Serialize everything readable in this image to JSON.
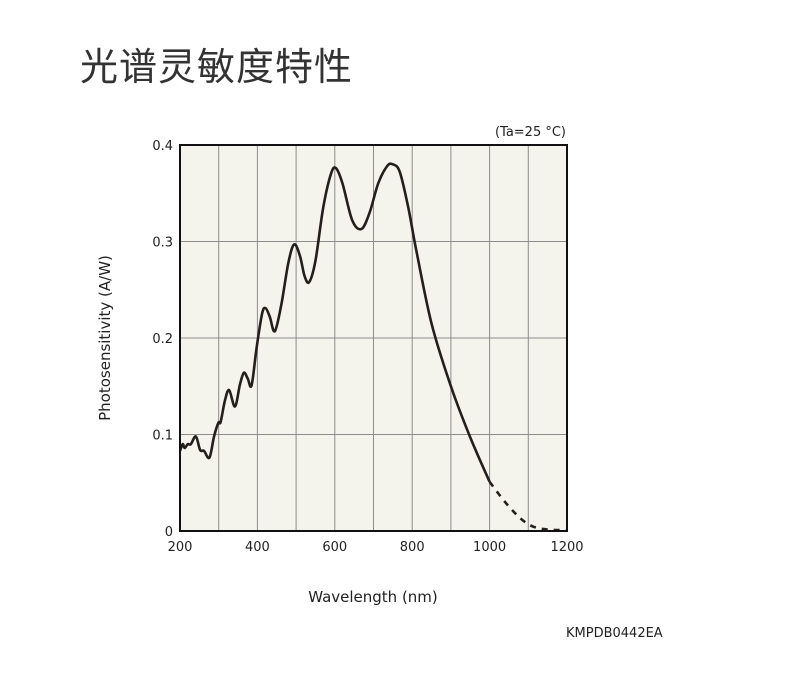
{
  "page_title": "光谱灵敏度特性",
  "doc_code": "KMPDB0442EA",
  "chart_data": {
    "type": "line",
    "title": "光谱灵敏度特性",
    "annotation": "(Ta=25 °C)",
    "xlabel": "Wavelength (nm)",
    "ylabel": "Photosensitivity (A/W)",
    "xlim": [
      200,
      1200
    ],
    "ylim": [
      0,
      0.4
    ],
    "xticks": [
      "200",
      "400",
      "600",
      "800",
      "1000",
      "1200"
    ],
    "yticks": [
      "0",
      "0.1",
      "0.2",
      "0.3",
      "0.4"
    ],
    "grid": true,
    "colors": {
      "background": "#f4f3ec",
      "line": "#231f1c",
      "grid": "#8c8c8c"
    },
    "series": [
      {
        "name": "solid",
        "style": "solid",
        "x": [
          200,
          207,
          212,
          220,
          228,
          241,
          252,
          262,
          276,
          288,
          299,
          305,
          316,
          327,
          342,
          355,
          365,
          375,
          385,
          398,
          412,
          421,
          432,
          445,
          462,
          480,
          495,
          510,
          522,
          534,
          550,
          570,
          590,
          603,
          620,
          645,
          669,
          690,
          712,
          735,
          750,
          768,
          790,
          810,
          850,
          900,
          950,
          1000
        ],
        "y": [
          0.083,
          0.09,
          0.086,
          0.09,
          0.09,
          0.098,
          0.084,
          0.083,
          0.076,
          0.098,
          0.112,
          0.113,
          0.135,
          0.146,
          0.129,
          0.152,
          0.164,
          0.158,
          0.151,
          0.19,
          0.225,
          0.231,
          0.222,
          0.207,
          0.235,
          0.278,
          0.297,
          0.285,
          0.264,
          0.258,
          0.28,
          0.335,
          0.37,
          0.376,
          0.36,
          0.322,
          0.313,
          0.33,
          0.36,
          0.378,
          0.38,
          0.372,
          0.335,
          0.292,
          0.215,
          0.15,
          0.097,
          0.051
        ]
      },
      {
        "name": "dashed",
        "style": "dashed",
        "x": [
          1000,
          1040,
          1080,
          1110,
          1140,
          1170,
          1200
        ],
        "y": [
          0.051,
          0.03,
          0.013,
          0.005,
          0.002,
          0.001,
          0.001
        ]
      }
    ]
  }
}
